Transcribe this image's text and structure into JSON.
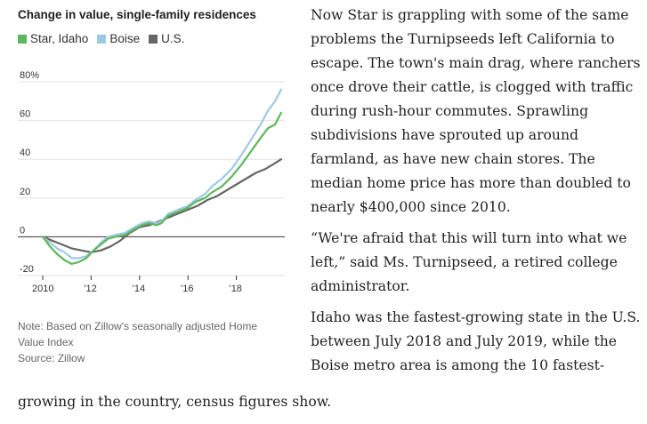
{
  "chart_data": {
    "type": "line",
    "title": "Change in value, single-family residences",
    "xlabel": "",
    "ylabel": "",
    "ylim": [
      -20,
      80
    ],
    "xlim": [
      2010,
      2020
    ],
    "x_ticks": [
      {
        "value": 2010,
        "label": "2010"
      },
      {
        "value": 2012,
        "label": "'12"
      },
      {
        "value": 2014,
        "label": "'14"
      },
      {
        "value": 2016,
        "label": "'16"
      },
      {
        "value": 2018,
        "label": "'18"
      }
    ],
    "y_ticks": [
      {
        "value": 80,
        "label": "80%"
      },
      {
        "value": 60,
        "label": "60"
      },
      {
        "value": 40,
        "label": "40"
      },
      {
        "value": 20,
        "label": "20"
      },
      {
        "value": 0,
        "label": "0"
      },
      {
        "value": -20,
        "label": "-20"
      }
    ],
    "series": [
      {
        "name": "Star, Idaho",
        "color": "#5cb85c",
        "points": [
          [
            2010,
            0
          ],
          [
            2010.3,
            -5
          ],
          [
            2010.6,
            -9
          ],
          [
            2010.9,
            -12
          ],
          [
            2011.2,
            -14
          ],
          [
            2011.5,
            -13
          ],
          [
            2011.8,
            -11
          ],
          [
            2012.1,
            -7
          ],
          [
            2012.4,
            -4
          ],
          [
            2012.7,
            -1
          ],
          [
            2013.0,
            0
          ],
          [
            2013.4,
            1
          ],
          [
            2013.8,
            4
          ],
          [
            2014.1,
            6
          ],
          [
            2014.4,
            7
          ],
          [
            2014.7,
            6
          ],
          [
            2014.9,
            7
          ],
          [
            2015.2,
            11
          ],
          [
            2015.6,
            13
          ],
          [
            2016.0,
            15
          ],
          [
            2016.3,
            18
          ],
          [
            2016.7,
            20
          ],
          [
            2017.0,
            23
          ],
          [
            2017.4,
            26
          ],
          [
            2017.8,
            31
          ],
          [
            2018.2,
            37
          ],
          [
            2018.6,
            44
          ],
          [
            2019.0,
            51
          ],
          [
            2019.3,
            56
          ],
          [
            2019.6,
            58
          ],
          [
            2019.85,
            64
          ]
        ]
      },
      {
        "name": "Boise",
        "color": "#9ec9e6",
        "points": [
          [
            2010,
            0
          ],
          [
            2010.3,
            -3
          ],
          [
            2010.6,
            -6
          ],
          [
            2010.9,
            -8
          ],
          [
            2011.2,
            -11
          ],
          [
            2011.5,
            -11
          ],
          [
            2011.8,
            -10
          ],
          [
            2012.1,
            -7
          ],
          [
            2012.4,
            -3
          ],
          [
            2012.7,
            0
          ],
          [
            2013.0,
            1
          ],
          [
            2013.4,
            2
          ],
          [
            2013.8,
            5
          ],
          [
            2014.1,
            7
          ],
          [
            2014.4,
            8
          ],
          [
            2014.7,
            7
          ],
          [
            2014.9,
            8
          ],
          [
            2015.2,
            12
          ],
          [
            2015.6,
            14
          ],
          [
            2016.0,
            16
          ],
          [
            2016.3,
            19
          ],
          [
            2016.7,
            22
          ],
          [
            2017.0,
            26
          ],
          [
            2017.4,
            30
          ],
          [
            2017.8,
            35
          ],
          [
            2018.2,
            42
          ],
          [
            2018.6,
            50
          ],
          [
            2019.0,
            58
          ],
          [
            2019.3,
            65
          ],
          [
            2019.6,
            70
          ],
          [
            2019.85,
            76
          ]
        ]
      },
      {
        "name": "U.S.",
        "color": "#666666",
        "points": [
          [
            2010,
            0
          ],
          [
            2010.4,
            -2
          ],
          [
            2010.8,
            -4
          ],
          [
            2011.2,
            -6
          ],
          [
            2011.6,
            -7
          ],
          [
            2012.0,
            -8
          ],
          [
            2012.4,
            -7
          ],
          [
            2012.8,
            -5
          ],
          [
            2013.2,
            -2
          ],
          [
            2013.6,
            2
          ],
          [
            2014.0,
            5
          ],
          [
            2014.4,
            6
          ],
          [
            2014.8,
            8
          ],
          [
            2015.2,
            10
          ],
          [
            2015.6,
            12
          ],
          [
            2016.0,
            14
          ],
          [
            2016.4,
            16
          ],
          [
            2016.8,
            19
          ],
          [
            2017.2,
            21
          ],
          [
            2017.6,
            24
          ],
          [
            2018.0,
            27
          ],
          [
            2018.4,
            30
          ],
          [
            2018.8,
            33
          ],
          [
            2019.2,
            35
          ],
          [
            2019.6,
            38
          ],
          [
            2019.85,
            40
          ]
        ]
      }
    ],
    "note": "Note: Based on Zillow's seasonally adjusted Home Value Index",
    "source": "Source: Zillow"
  },
  "article": {
    "paragraphs": [
      "Now Star is grappling with some of the same problems the Turnipseeds left California to escape. The town's main drag, where ranchers once drove their cattle, is clogged with traffic during rush-hour commutes. Sprawling subdivisions have sprouted up around farmland, as have new chain stores. The median home price has more than doubled to nearly $400,000 since 2010.",
      "“We're afraid that this will turn into what we left,” said Ms. Turnipseed, a retired college administrator.",
      "Idaho was the fastest-growing state in the U.S. between July 2018 and July 2019, while the Boise metro area is among the 10 fastest-"
    ],
    "continuation": "growing in the country, census figures show."
  }
}
